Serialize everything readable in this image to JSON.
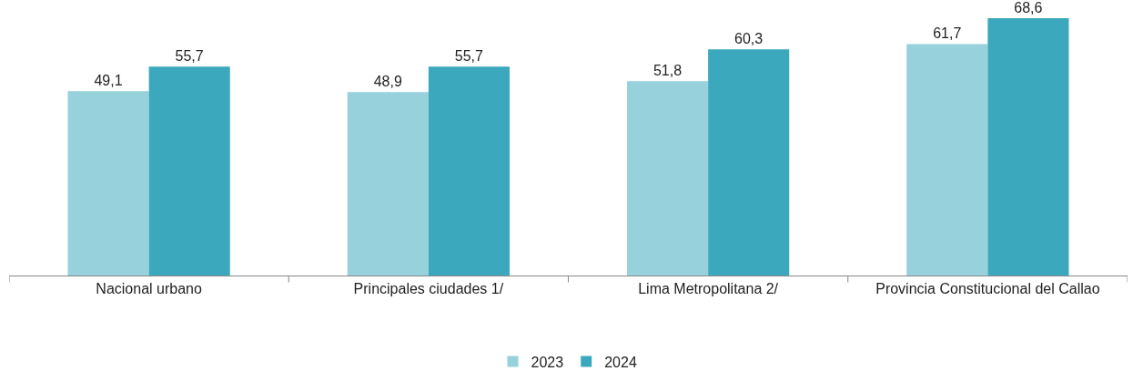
{
  "chart_data": {
    "type": "bar",
    "categories": [
      "Nacional urbano",
      "Principales ciudades 1/",
      "Lima Metropolitana 2/",
      "Provincia Constitucional del Callao"
    ],
    "series": [
      {
        "name": "2023",
        "color": "#96d1dc",
        "values": [
          49.1,
          48.9,
          51.8,
          61.7
        ],
        "value_labels": [
          "49,1",
          "48,9",
          "51,8",
          "61,7"
        ]
      },
      {
        "name": "2024",
        "color": "#3ba8bd",
        "values": [
          55.7,
          55.7,
          60.3,
          68.6
        ],
        "value_labels": [
          "55,7",
          "55,7",
          "60,3",
          "68,6"
        ]
      }
    ],
    "grid": false,
    "legend": "bottom",
    "tick_labels": "x"
  }
}
